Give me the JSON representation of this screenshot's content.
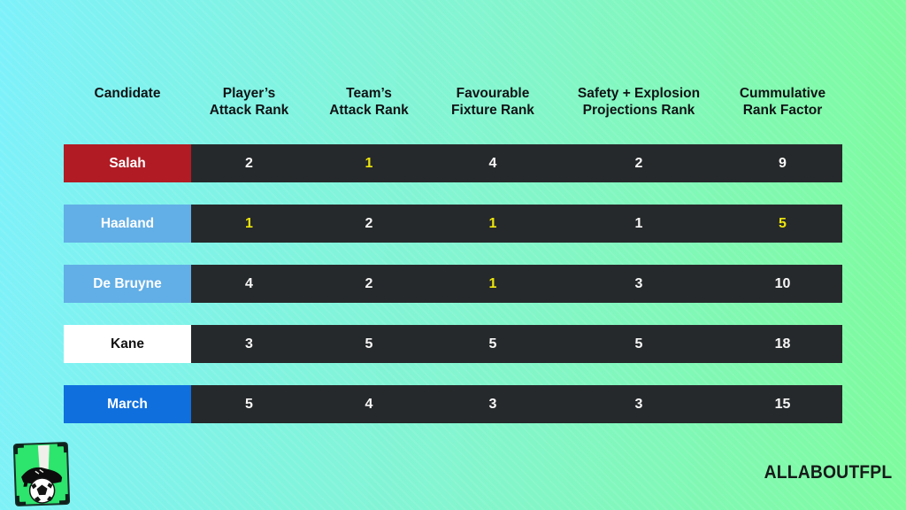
{
  "colors": {
    "bg_left": "#7df1fa",
    "bg_right": "#7efb9d",
    "band_bg": "#26292b",
    "value_text": "#f7f7f7",
    "highlight_text": "#ece50e",
    "header_text": "#101315"
  },
  "table": {
    "headers": [
      {
        "label": "Candidate"
      },
      {
        "label": "Player’s\nAttack Rank"
      },
      {
        "label": "Team’s\nAttack Rank"
      },
      {
        "label": "Favourable\nFixture Rank"
      },
      {
        "label": "Safety + Explosion\nProjections Rank"
      },
      {
        "label": "Cummulative\nRank Factor"
      }
    ],
    "rows": [
      {
        "name": "Salah",
        "name_bg": "#b11b24",
        "name_color": "#ffffff",
        "values": [
          {
            "text": "2",
            "highlight": false
          },
          {
            "text": "1",
            "highlight": true
          },
          {
            "text": "4",
            "highlight": false
          },
          {
            "text": "2",
            "highlight": false
          },
          {
            "text": "9",
            "highlight": false
          }
        ]
      },
      {
        "name": "Haaland",
        "name_bg": "#62aee6",
        "name_color": "#ffffff",
        "values": [
          {
            "text": "1",
            "highlight": true
          },
          {
            "text": "2",
            "highlight": false
          },
          {
            "text": "1",
            "highlight": true
          },
          {
            "text": "1",
            "highlight": false
          },
          {
            "text": "5",
            "highlight": true
          }
        ]
      },
      {
        "name": "De Bruyne",
        "name_bg": "#62aee6",
        "name_color": "#ffffff",
        "values": [
          {
            "text": "4",
            "highlight": false
          },
          {
            "text": "2",
            "highlight": false
          },
          {
            "text": "1",
            "highlight": true
          },
          {
            "text": "3",
            "highlight": false
          },
          {
            "text": "10",
            "highlight": false
          }
        ]
      },
      {
        "name": "Kane",
        "name_bg": "#ffffff",
        "name_color": "#121212",
        "values": [
          {
            "text": "3",
            "highlight": false
          },
          {
            "text": "5",
            "highlight": false
          },
          {
            "text": "5",
            "highlight": false
          },
          {
            "text": "5",
            "highlight": false
          },
          {
            "text": "18",
            "highlight": false
          }
        ]
      },
      {
        "name": "March",
        "name_bg": "#0f6fdd",
        "name_color": "#ffffff",
        "values": [
          {
            "text": "5",
            "highlight": false
          },
          {
            "text": "4",
            "highlight": false
          },
          {
            "text": "3",
            "highlight": false
          },
          {
            "text": "3",
            "highlight": false
          },
          {
            "text": "15",
            "highlight": false
          }
        ]
      }
    ]
  },
  "branding": {
    "wordmark": "ALLABOUTFPL",
    "logo_icon": "football-boot-on-ball-card"
  },
  "chart_data": {
    "type": "table",
    "columns": [
      "Candidate",
      "Player’s Attack Rank",
      "Team’s Attack Rank",
      "Favourable Fixture Rank",
      "Safety + Explosion Projections Rank",
      "Cummulative Rank Factor"
    ],
    "rows": [
      [
        "Salah",
        2,
        1,
        4,
        2,
        9
      ],
      [
        "Haaland",
        1,
        2,
        1,
        1,
        5
      ],
      [
        "De Bruyne",
        4,
        2,
        1,
        3,
        10
      ],
      [
        "Kane",
        3,
        5,
        5,
        5,
        18
      ],
      [
        "March",
        5,
        4,
        3,
        3,
        15
      ]
    ],
    "highlighted_cells_yellow": [
      [
        "Salah",
        "Team’s Attack Rank"
      ],
      [
        "Haaland",
        "Player’s Attack Rank"
      ],
      [
        "Haaland",
        "Favourable Fixture Rank"
      ],
      [
        "Haaland",
        "Cummulative Rank Factor"
      ],
      [
        "De Bruyne",
        "Favourable Fixture Rank"
      ]
    ]
  }
}
